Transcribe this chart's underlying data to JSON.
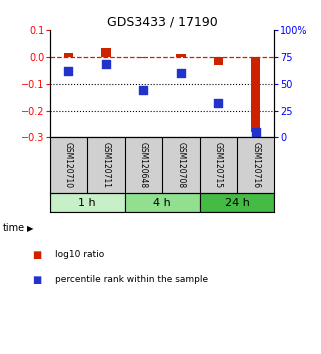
{
  "title": "GDS3433 / 17190",
  "samples": [
    "GSM120710",
    "GSM120711",
    "GSM120648",
    "GSM120708",
    "GSM120715",
    "GSM120716"
  ],
  "time_groups": [
    {
      "label": "1 h",
      "n": 2,
      "color": "#c8f0c8"
    },
    {
      "label": "4 h",
      "n": 2,
      "color": "#90e090"
    },
    {
      "label": "24 h",
      "n": 2,
      "color": "#44bb44"
    }
  ],
  "log10_ratio": [
    0.015,
    0.032,
    -0.005,
    0.012,
    -0.03,
    -0.28
  ],
  "percentile_rank": [
    62,
    68,
    44,
    60,
    32,
    5
  ],
  "ylim_left": [
    -0.3,
    0.1
  ],
  "ylim_right": [
    0,
    100
  ],
  "yticks_left": [
    -0.3,
    -0.2,
    -0.1,
    0.0,
    0.1
  ],
  "yticks_right": [
    0,
    25,
    50,
    75,
    100
  ],
  "ytick_labels_right": [
    "0",
    "25",
    "50",
    "75",
    "100%"
  ],
  "hline_y": 0.0,
  "dotted_lines": [
    -0.1,
    -0.2
  ],
  "bar_color_red": "#cc2200",
  "bar_color_blue": "#2233cc",
  "legend_red_label": "log10 ratio",
  "legend_blue_label": "percentile rank within the sample",
  "bar_width": 0.25,
  "dot_size": 35,
  "background_color": "#ffffff",
  "title_fontsize": 9,
  "tick_fontsize": 7,
  "sample_fontsize": 5.5,
  "time_fontsize": 8,
  "legend_fontsize": 6.5
}
